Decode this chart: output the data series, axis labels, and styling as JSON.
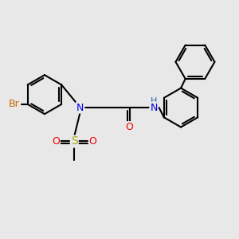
{
  "bg": "#E8E8E8",
  "bond_color": "#000000",
  "lw": 1.5,
  "atom_colors": {
    "Br": "#CC6600",
    "N": "#0000EE",
    "O": "#EE0000",
    "S": "#AAAA00",
    "NH": "#2266AA"
  },
  "fs": 9,
  "figsize": [
    3.0,
    3.0
  ],
  "dpi": 100
}
